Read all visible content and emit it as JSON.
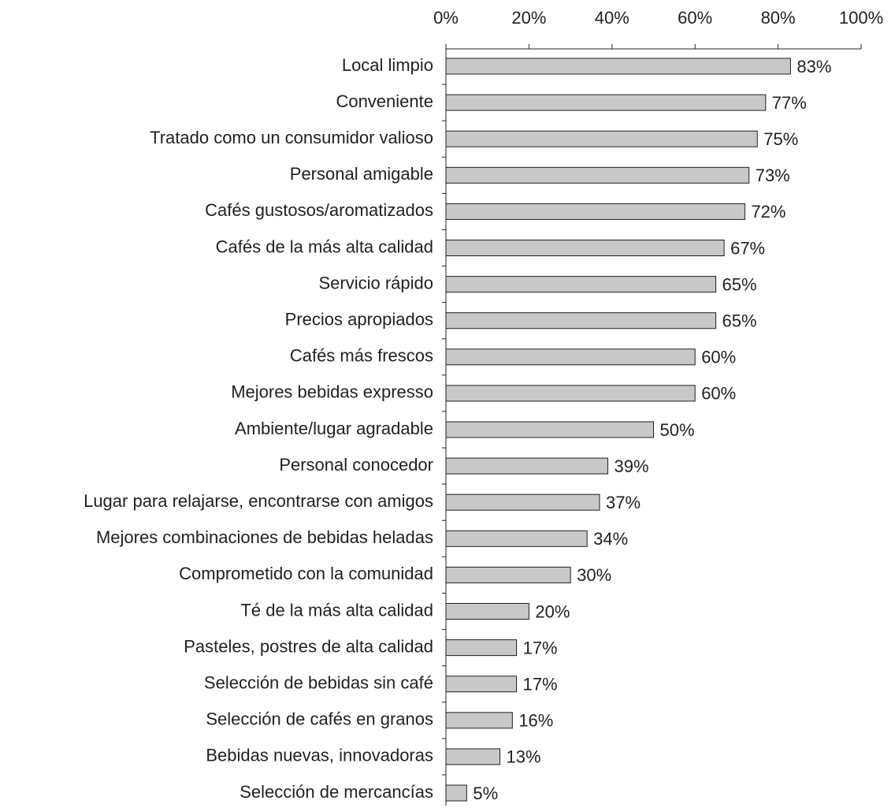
{
  "chart_data": {
    "type": "hbar",
    "categories": [
      "Local limpio",
      "Conveniente",
      "Tratado como un consumidor valioso",
      "Personal amigable",
      "Cafés gustosos/aromatizados",
      "Cafés de la más alta calidad",
      "Servicio rápido",
      "Precios apropiados",
      "Cafés más frescos",
      "Mejores bebidas expresso",
      "Ambiente/lugar agradable",
      "Personal conocedor",
      "Lugar para relajarse, encontrarse con amigos",
      "Mejores combinaciones de bebidas heladas",
      "Comprometido con la comunidad",
      "Té de la más alta calidad",
      "Pasteles, postres de alta calidad",
      "Selección de bebidas sin café",
      "Selección de cafés en granos",
      "Bebidas nuevas, innovadoras",
      "Selección de mercancías"
    ],
    "values": [
      83,
      77,
      75,
      73,
      72,
      67,
      65,
      65,
      60,
      60,
      50,
      39,
      37,
      34,
      30,
      20,
      17,
      17,
      16,
      13,
      5
    ],
    "value_labels": [
      "83%",
      "77%",
      "75%",
      "73%",
      "72%",
      "67%",
      "65%",
      "65%",
      "60%",
      "60%",
      "50%",
      "39%",
      "37%",
      "34%",
      "30%",
      "20%",
      "17%",
      "17%",
      "16%",
      "13%",
      "5%"
    ],
    "color": "#c8c8c8",
    "xlim": [
      0,
      100
    ],
    "xticks": [
      {
        "value": 0,
        "label": "0%"
      },
      {
        "value": 20,
        "label": "20%"
      },
      {
        "value": 40,
        "label": "40%"
      },
      {
        "value": 60,
        "label": "60%"
      },
      {
        "value": 80,
        "label": "80%"
      },
      {
        "value": 100,
        "label": "100%"
      }
    ]
  }
}
